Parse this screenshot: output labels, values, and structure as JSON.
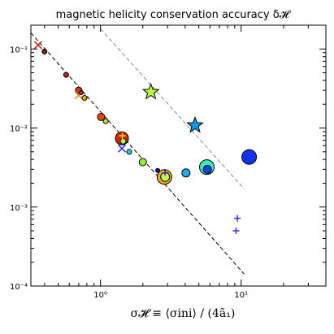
{
  "chart_data": {
    "type": "scatter",
    "title": "magnetic helicity conservation accuracy δ𝓗",
    "xlabel": "σ𝓗 ≡ ⟨σini⟩ / (4ã₁)",
    "ylabel": "",
    "xscale": "log",
    "yscale": "log",
    "xlim": [
      0.32,
      40
    ],
    "ylim": [
      0.0001,
      0.2
    ],
    "grid": false,
    "xticks": [
      {
        "value": 1,
        "label": "10⁰"
      },
      {
        "value": 10,
        "label": "10¹"
      }
    ],
    "yticks": [
      {
        "value": 0.0001,
        "label": "10⁻⁴"
      },
      {
        "value": 0.001,
        "label": "10⁻³"
      },
      {
        "value": 0.01,
        "label": "10⁻²"
      },
      {
        "value": 0.1,
        "label": "10⁻¹"
      }
    ],
    "lines": [
      {
        "name": "",
        "style": "dashed",
        "color": "#000000",
        "x": [
          0.32,
          10.5
        ],
        "y": [
          0.16,
          0.000142
        ]
      },
      {
        "name": "",
        "style": "dashed",
        "color": "#888888",
        "x": [
          1.0,
          10.5
        ],
        "y": [
          0.18,
          0.0017
        ]
      }
    ],
    "points": [
      {
        "marker": "x",
        "x": 0.36,
        "y": 0.112,
        "color": "#cc1111",
        "size": 9
      },
      {
        "marker": "circle",
        "x": 0.4,
        "y": 0.093,
        "color": "#8b1a0a",
        "size": 6
      },
      {
        "marker": "circle",
        "x": 0.57,
        "y": 0.047,
        "color": "#b22a10",
        "size": 6
      },
      {
        "marker": "circle",
        "x": 0.7,
        "y": 0.03,
        "color": "#dd3311",
        "size": 8
      },
      {
        "marker": "x",
        "x": 0.7,
        "y": 0.026,
        "color": "#e08800",
        "size": 9
      },
      {
        "marker": "circle",
        "x": 0.73,
        "y": 0.028,
        "color": "#aa3300",
        "size": 5
      },
      {
        "marker": "circle",
        "x": 0.77,
        "y": 0.024,
        "color": "#ffaa00",
        "size": 6
      },
      {
        "marker": "circle",
        "x": 1.01,
        "y": 0.0138,
        "color": "#ff4400",
        "size": 9
      },
      {
        "marker": "circle",
        "x": 1.09,
        "y": 0.0122,
        "color": "#bbee33",
        "size": 6
      },
      {
        "marker": "circle",
        "x": 1.42,
        "y": 0.0074,
        "color": "#dd2200",
        "size": 16
      },
      {
        "marker": "circle",
        "x": 1.45,
        "y": 0.0068,
        "color": "#aaff44",
        "size": 7
      },
      {
        "marker": "plus",
        "x": 1.43,
        "y": 0.008,
        "color": "#ffdd00",
        "size": 8
      },
      {
        "marker": "x",
        "x": 1.42,
        "y": 0.0055,
        "color": "#2222ff",
        "size": 9
      },
      {
        "marker": "circle",
        "x": 1.6,
        "y": 0.005,
        "color": "#33ccdd",
        "size": 6
      },
      {
        "marker": "circle",
        "x": 2.0,
        "y": 0.0037,
        "color": "#99ee33",
        "size": 9
      },
      {
        "marker": "circle",
        "x": 2.55,
        "y": 0.0029,
        "color": "#0000ee",
        "size": 5
      },
      {
        "marker": "circle",
        "x": 2.85,
        "y": 0.0024,
        "color": "#ffaa00",
        "size": 18
      },
      {
        "marker": "circle",
        "x": 2.88,
        "y": 0.0024,
        "color": "#bbff55",
        "size": 11
      },
      {
        "marker": "plus",
        "x": 2.88,
        "y": 0.0027,
        "color": "#2222cc",
        "size": 7
      },
      {
        "marker": "circle",
        "x": 4.05,
        "y": 0.0027,
        "color": "#22aaee",
        "size": 10
      },
      {
        "marker": "circle",
        "x": 5.7,
        "y": 0.0032,
        "color": "#33eebb",
        "size": 18
      },
      {
        "marker": "circle",
        "x": 5.75,
        "y": 0.003,
        "color": "#1144ee",
        "size": 10
      },
      {
        "marker": "circle",
        "x": 11.4,
        "y": 0.0043,
        "color": "#1133ee",
        "size": 18
      },
      {
        "marker": "star",
        "x": 2.28,
        "y": 0.0285,
        "color": "#bbff44",
        "size": 20
      },
      {
        "marker": "star",
        "x": 4.7,
        "y": 0.0108,
        "color": "#1199ee",
        "size": 20
      },
      {
        "marker": "plus",
        "x": 9.4,
        "y": 0.00072,
        "color": "#2233ff",
        "size": 8
      },
      {
        "marker": "plus",
        "x": 9.2,
        "y": 0.0005,
        "color": "#2233ff",
        "size": 8
      }
    ]
  }
}
